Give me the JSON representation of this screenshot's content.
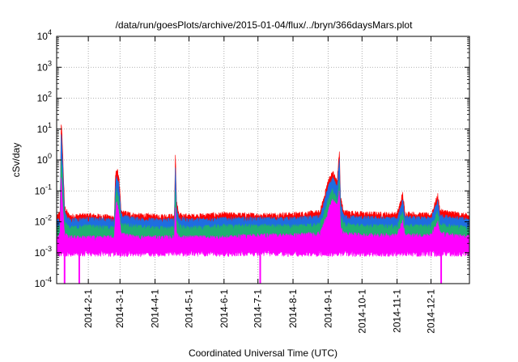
{
  "chart_data": {
    "type": "area",
    "title": "/data/run/goesPlots/archive/2015-01-04/flux/../bryn/366daysMars.plot",
    "xlabel": "Coordinated Universal Time (UTC)",
    "ylabel": "cSv/day",
    "yscale": "log",
    "ylim": [
      0.0001,
      10000
    ],
    "y_ticks": [
      {
        "base": "10",
        "exp": "-4"
      },
      {
        "base": "10",
        "exp": "-3"
      },
      {
        "base": "10",
        "exp": "-2"
      },
      {
        "base": "10",
        "exp": "-1"
      },
      {
        "base": "10",
        "exp": "0"
      },
      {
        "base": "10",
        "exp": "1"
      },
      {
        "base": "10",
        "exp": "2"
      },
      {
        "base": "10",
        "exp": "3"
      },
      {
        "base": "10",
        "exp": "4"
      }
    ],
    "xlim": [
      "2014-01-04",
      "2015-01-04"
    ],
    "x_ticks": [
      "2014-2-1",
      "2014-3-1",
      "2014-4-1",
      "2014-5-1",
      "2014-6-1",
      "2014-7-1",
      "2014-8-1",
      "2014-9-1",
      "2014-10-1",
      "2014-11-1",
      "2014-12-1"
    ],
    "grid": true,
    "legend": "none",
    "series": [
      {
        "color": "#ff0000",
        "points": [
          [
            "2014-01-04",
            0.013
          ],
          [
            "2014-01-07",
            0.02
          ],
          [
            "2014-01-08",
            16
          ],
          [
            "2014-01-09",
            4
          ],
          [
            "2014-01-11",
            0.03
          ],
          [
            "2014-01-15",
            0.015
          ],
          [
            "2014-02-01",
            0.016
          ],
          [
            "2014-02-24",
            0.014
          ],
          [
            "2014-02-25",
            0.3
          ],
          [
            "2014-02-26",
            0.5
          ],
          [
            "2014-02-28",
            0.3
          ],
          [
            "2014-03-02",
            0.02
          ],
          [
            "2014-03-15",
            0.016
          ],
          [
            "2014-04-01",
            0.015
          ],
          [
            "2014-04-18",
            0.015
          ],
          [
            "2014-04-19",
            1.3
          ],
          [
            "2014-04-20",
            0.05
          ],
          [
            "2014-04-22",
            0.016
          ],
          [
            "2014-05-01",
            0.015
          ],
          [
            "2014-06-01",
            0.017
          ],
          [
            "2014-07-01",
            0.016
          ],
          [
            "2014-08-01",
            0.017
          ],
          [
            "2014-08-25",
            0.02
          ],
          [
            "2014-09-01",
            0.2
          ],
          [
            "2014-09-05",
            0.4
          ],
          [
            "2014-09-09",
            0.2
          ],
          [
            "2014-09-11",
            2.0
          ],
          [
            "2014-09-12",
            0.06
          ],
          [
            "2014-09-15",
            0.02
          ],
          [
            "2014-10-01",
            0.018
          ],
          [
            "2014-11-01",
            0.017
          ],
          [
            "2014-11-06",
            0.08
          ],
          [
            "2014-11-08",
            0.018
          ],
          [
            "2014-12-01",
            0.016
          ],
          [
            "2014-12-07",
            0.07
          ],
          [
            "2014-12-09",
            0.022
          ],
          [
            "2015-01-04",
            0.015
          ]
        ]
      },
      {
        "color": "#1e6ee0",
        "points": [
          [
            "2014-01-04",
            0.01
          ],
          [
            "2014-01-07",
            0.012
          ],
          [
            "2014-01-08",
            8
          ],
          [
            "2014-01-09",
            1.5
          ],
          [
            "2014-01-11",
            0.02
          ],
          [
            "2014-01-15",
            0.011
          ],
          [
            "2014-02-01",
            0.012
          ],
          [
            "2014-02-24",
            0.011
          ],
          [
            "2014-02-25",
            0.15
          ],
          [
            "2014-02-26",
            0.3
          ],
          [
            "2014-02-28",
            0.15
          ],
          [
            "2014-03-02",
            0.015
          ],
          [
            "2014-03-15",
            0.012
          ],
          [
            "2014-04-01",
            0.011
          ],
          [
            "2014-04-18",
            0.011
          ],
          [
            "2014-04-19",
            0.6
          ],
          [
            "2014-04-20",
            0.03
          ],
          [
            "2014-04-22",
            0.012
          ],
          [
            "2014-05-01",
            0.011
          ],
          [
            "2014-06-01",
            0.012
          ],
          [
            "2014-07-01",
            0.012
          ],
          [
            "2014-08-01",
            0.012
          ],
          [
            "2014-08-25",
            0.014
          ],
          [
            "2014-09-01",
            0.12
          ],
          [
            "2014-09-05",
            0.25
          ],
          [
            "2014-09-09",
            0.12
          ],
          [
            "2014-09-11",
            1.0
          ],
          [
            "2014-09-12",
            0.04
          ],
          [
            "2014-09-15",
            0.014
          ],
          [
            "2014-10-01",
            0.013
          ],
          [
            "2014-11-01",
            0.012
          ],
          [
            "2014-11-06",
            0.05
          ],
          [
            "2014-11-08",
            0.013
          ],
          [
            "2014-12-01",
            0.012
          ],
          [
            "2014-12-07",
            0.045
          ],
          [
            "2014-12-09",
            0.015
          ],
          [
            "2015-01-04",
            0.011
          ]
        ]
      },
      {
        "color": "#20b070",
        "points": [
          [
            "2014-01-04",
            0.006
          ],
          [
            "2014-01-07",
            0.007
          ],
          [
            "2014-01-08",
            1.0
          ],
          [
            "2014-01-09",
            0.3
          ],
          [
            "2014-01-11",
            0.01
          ],
          [
            "2014-01-15",
            0.006
          ],
          [
            "2014-02-01",
            0.007
          ],
          [
            "2014-02-24",
            0.006
          ],
          [
            "2014-02-25",
            0.05
          ],
          [
            "2014-02-26",
            0.1
          ],
          [
            "2014-02-28",
            0.05
          ],
          [
            "2014-03-02",
            0.008
          ],
          [
            "2014-03-15",
            0.007
          ],
          [
            "2014-04-01",
            0.006
          ],
          [
            "2014-04-18",
            0.006
          ],
          [
            "2014-04-19",
            0.1
          ],
          [
            "2014-04-20",
            0.012
          ],
          [
            "2014-04-22",
            0.007
          ],
          [
            "2014-05-01",
            0.006
          ],
          [
            "2014-06-01",
            0.007
          ],
          [
            "2014-07-01",
            0.007
          ],
          [
            "2014-08-01",
            0.007
          ],
          [
            "2014-08-25",
            0.008
          ],
          [
            "2014-09-01",
            0.05
          ],
          [
            "2014-09-05",
            0.1
          ],
          [
            "2014-09-09",
            0.05
          ],
          [
            "2014-09-11",
            0.2
          ],
          [
            "2014-09-12",
            0.015
          ],
          [
            "2014-09-15",
            0.008
          ],
          [
            "2014-10-01",
            0.007
          ],
          [
            "2014-11-01",
            0.007
          ],
          [
            "2014-11-06",
            0.02
          ],
          [
            "2014-11-08",
            0.007
          ],
          [
            "2014-12-01",
            0.007
          ],
          [
            "2014-12-07",
            0.02
          ],
          [
            "2014-12-09",
            0.008
          ],
          [
            "2015-01-04",
            0.006
          ]
        ]
      },
      {
        "color": "#ff00ff",
        "points": [
          [
            "2014-01-04",
            0.003
          ],
          [
            "2014-01-07",
            0.004
          ],
          [
            "2014-01-08",
            0.3
          ],
          [
            "2014-01-09",
            0.05
          ],
          [
            "2014-01-11",
            0.004
          ],
          [
            "2014-01-15",
            0.003
          ],
          [
            "2014-02-01",
            0.003
          ],
          [
            "2014-02-24",
            0.003
          ],
          [
            "2014-02-25",
            0.02
          ],
          [
            "2014-02-26",
            0.04
          ],
          [
            "2014-02-28",
            0.02
          ],
          [
            "2014-03-02",
            0.004
          ],
          [
            "2014-03-15",
            0.003
          ],
          [
            "2014-04-01",
            0.003
          ],
          [
            "2014-04-18",
            0.003
          ],
          [
            "2014-04-19",
            0.03
          ],
          [
            "2014-04-20",
            0.005
          ],
          [
            "2014-04-22",
            0.003
          ],
          [
            "2014-05-01",
            0.003
          ],
          [
            "2014-06-01",
            0.003
          ],
          [
            "2014-07-01",
            0.0035
          ],
          [
            "2014-08-01",
            0.0035
          ],
          [
            "2014-08-25",
            0.004
          ],
          [
            "2014-09-01",
            0.02
          ],
          [
            "2014-09-05",
            0.05
          ],
          [
            "2014-09-09",
            0.03
          ],
          [
            "2014-09-11",
            0.1
          ],
          [
            "2014-09-12",
            0.006
          ],
          [
            "2014-09-15",
            0.004
          ],
          [
            "2014-10-01",
            0.0035
          ],
          [
            "2014-11-01",
            0.0035
          ],
          [
            "2014-11-06",
            0.01
          ],
          [
            "2014-11-08",
            0.0035
          ],
          [
            "2014-12-01",
            0.0035
          ],
          [
            "2014-12-07",
            0.009
          ],
          [
            "2014-12-09",
            0.004
          ],
          [
            "2015-01-04",
            0.003
          ]
        ]
      }
    ],
    "floor": {
      "color": "#ff00ff",
      "value": 0.0012
    },
    "dips": [
      {
        "color": "#ff00ff",
        "date": "2014-01-11",
        "value": 0.0001
      },
      {
        "color": "#ff00ff",
        "date": "2014-01-24",
        "value": 0.0001
      },
      {
        "color": "#ff00ff",
        "date": "2014-07-03",
        "value": 0.0001
      },
      {
        "color": "#ff00ff",
        "date": "2014-12-10",
        "value": 0.0001
      }
    ]
  }
}
